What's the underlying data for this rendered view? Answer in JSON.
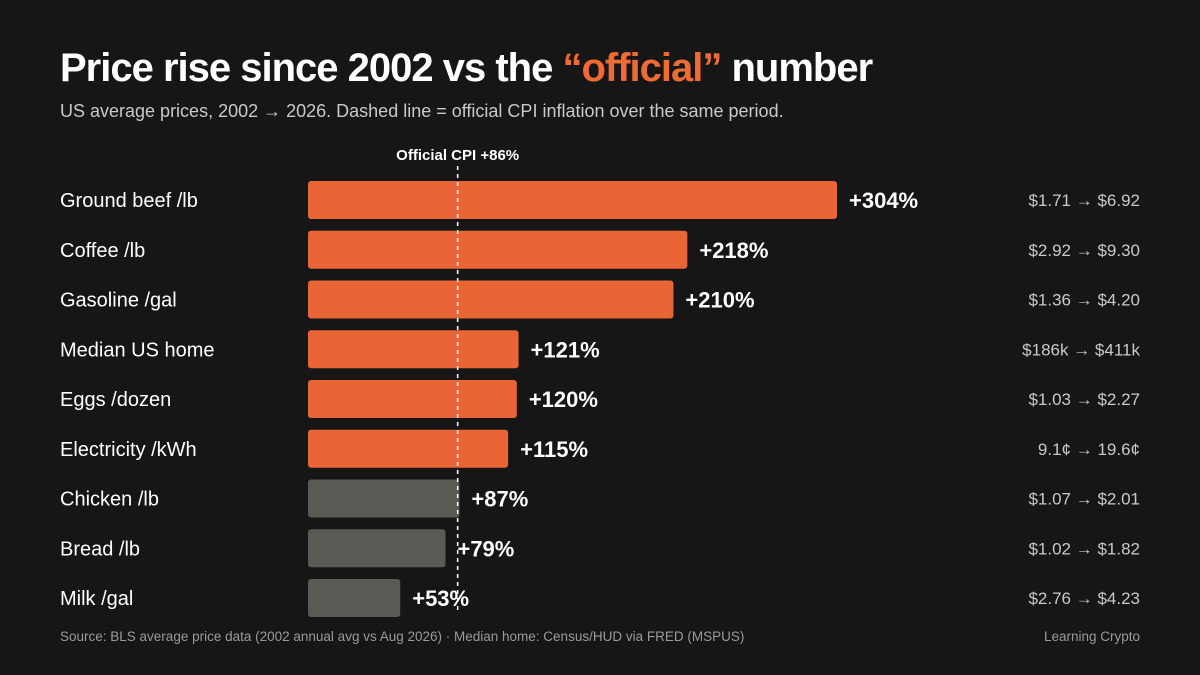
{
  "colors": {
    "accent": "#ef6a35",
    "above_cpi": "#ea6535",
    "below_cpi": "#5a5a55",
    "background": "#161616",
    "muted_text": "#c9c9c9"
  },
  "header": {
    "title_before": "Price rise since 2002 vs the ",
    "title_highlight": "“official”",
    "title_after": " number",
    "subtitle": "US average prices, 2002 → 2026. Dashed line = official CPI inflation over the same period."
  },
  "footer": {
    "source": "Source: BLS average price data (2002 annual avg vs Aug 2026) · Median home: Census/HUD via FRED (MSPUS)",
    "brand": "Learning Crypto"
  },
  "chart_data": {
    "type": "bar",
    "orientation": "horizontal",
    "reference_line": {
      "value": 86,
      "label": "Official CPI +86%",
      "style": "dashed"
    },
    "xlim": [
      0,
      304
    ],
    "grid": false,
    "legend": "none",
    "categories": [
      "Ground beef /lb",
      "Coffee /lb",
      "Gasoline /gal",
      "Median US home",
      "Eggs /dozen",
      "Electricity /kWh",
      "Chicken /lb",
      "Bread /lb",
      "Milk /gal"
    ],
    "values": [
      304,
      218,
      210,
      121,
      120,
      115,
      87,
      79,
      53
    ],
    "value_labels": [
      "+304%",
      "+218%",
      "+210%",
      "+121%",
      "+120%",
      "+115%",
      "+87%",
      "+79%",
      "+53%"
    ],
    "price_ranges": [
      "$1.71 → $6.92",
      "$2.92 → $9.30",
      "$1.36 → $4.20",
      "$186k → $411k",
      "$1.03 → $2.27",
      "9.1¢ → 19.6¢",
      "$1.07 → $2.01",
      "$1.02 → $1.82",
      "$2.76 → $4.23"
    ],
    "highlighted": [
      true,
      true,
      true,
      true,
      true,
      true,
      false,
      false,
      false
    ]
  }
}
